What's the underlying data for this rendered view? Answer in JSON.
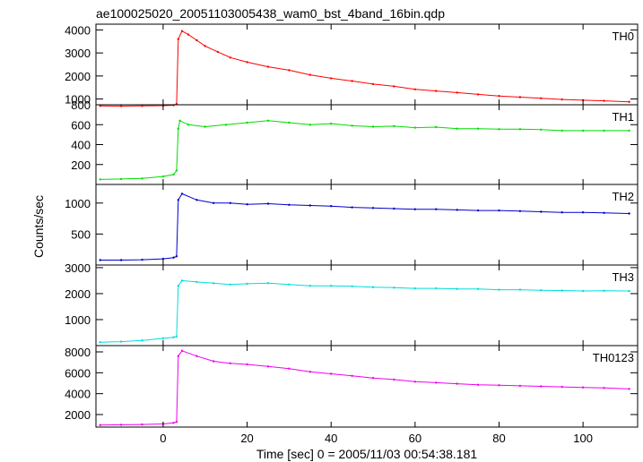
{
  "title": "ae100025020_20051103005438_wam0_bst_4band_16bin.qdp",
  "chart_data": {
    "type": "line",
    "title": "ae100025020_20051103005438_wam0_bst_4band_16bin.qdp",
    "xlabel": "Time [sec] 0 = 2005/11/03 00:54:38.181",
    "ylabel": "Counts/sec",
    "xlim": [
      -16,
      113
    ],
    "xticks": [
      0,
      20,
      40,
      60,
      80,
      100
    ],
    "grid": false,
    "legend": "none",
    "panels": [
      {
        "name": "TH0",
        "color": "#ff0000",
        "ylim": [
          750,
          4250
        ],
        "yticks": [
          1000,
          2000,
          3000,
          4000
        ],
        "points": [
          [
            -15,
            700
          ],
          [
            -10,
            690
          ],
          [
            -5,
            700
          ],
          [
            0,
            710
          ],
          [
            2.5,
            730
          ],
          [
            3.2,
            780
          ],
          [
            3.6,
            3600
          ],
          [
            4.5,
            3950
          ],
          [
            6,
            3800
          ],
          [
            8,
            3550
          ],
          [
            10,
            3300
          ],
          [
            13,
            3050
          ],
          [
            16,
            2800
          ],
          [
            20,
            2600
          ],
          [
            25,
            2400
          ],
          [
            30,
            2250
          ],
          [
            35,
            2050
          ],
          [
            40,
            1900
          ],
          [
            45,
            1780
          ],
          [
            50,
            1650
          ],
          [
            55,
            1550
          ],
          [
            60,
            1420
          ],
          [
            65,
            1350
          ],
          [
            70,
            1280
          ],
          [
            75,
            1200
          ],
          [
            80,
            1130
          ],
          [
            85,
            1080
          ],
          [
            90,
            1030
          ],
          [
            95,
            980
          ],
          [
            100,
            950
          ],
          [
            105,
            920
          ],
          [
            111,
            880
          ]
        ]
      },
      {
        "name": "TH1",
        "color": "#00dd00",
        "ylim": [
          0,
          800
        ],
        "yticks": [
          200,
          400,
          600,
          800
        ],
        "points": [
          [
            -15,
            50
          ],
          [
            -10,
            55
          ],
          [
            -5,
            60
          ],
          [
            0,
            80
          ],
          [
            2.5,
            100
          ],
          [
            3.2,
            140
          ],
          [
            3.6,
            560
          ],
          [
            4,
            640
          ],
          [
            6,
            600
          ],
          [
            10,
            580
          ],
          [
            15,
            600
          ],
          [
            20,
            620
          ],
          [
            25,
            640
          ],
          [
            30,
            620
          ],
          [
            35,
            600
          ],
          [
            40,
            610
          ],
          [
            45,
            590
          ],
          [
            50,
            580
          ],
          [
            55,
            585
          ],
          [
            60,
            570
          ],
          [
            65,
            575
          ],
          [
            70,
            560
          ],
          [
            75,
            560
          ],
          [
            80,
            555
          ],
          [
            85,
            555
          ],
          [
            90,
            550
          ],
          [
            95,
            540
          ],
          [
            100,
            540
          ],
          [
            105,
            540
          ],
          [
            111,
            540
          ]
        ]
      },
      {
        "name": "TH2",
        "color": "#0000cc",
        "ylim": [
          0,
          1300
        ],
        "yticks": [
          500,
          1000
        ],
        "points": [
          [
            -15,
            80
          ],
          [
            -10,
            80
          ],
          [
            -5,
            85
          ],
          [
            0,
            100
          ],
          [
            2.5,
            120
          ],
          [
            3.2,
            140
          ],
          [
            3.6,
            1050
          ],
          [
            4.5,
            1150
          ],
          [
            8,
            1050
          ],
          [
            12,
            1000
          ],
          [
            16,
            1000
          ],
          [
            20,
            980
          ],
          [
            25,
            990
          ],
          [
            30,
            970
          ],
          [
            35,
            960
          ],
          [
            40,
            950
          ],
          [
            45,
            930
          ],
          [
            50,
            920
          ],
          [
            55,
            910
          ],
          [
            60,
            900
          ],
          [
            65,
            900
          ],
          [
            70,
            890
          ],
          [
            75,
            880
          ],
          [
            80,
            880
          ],
          [
            85,
            870
          ],
          [
            90,
            860
          ],
          [
            95,
            850
          ],
          [
            100,
            850
          ],
          [
            105,
            840
          ],
          [
            111,
            830
          ]
        ]
      },
      {
        "name": "TH3",
        "color": "#00dddd",
        "ylim": [
          0,
          3100
        ],
        "yticks": [
          1000,
          2000,
          3000
        ],
        "points": [
          [
            -15,
            130
          ],
          [
            -10,
            150
          ],
          [
            -5,
            200
          ],
          [
            0,
            280
          ],
          [
            2.5,
            320
          ],
          [
            3.2,
            350
          ],
          [
            3.6,
            2300
          ],
          [
            4.5,
            2500
          ],
          [
            8,
            2450
          ],
          [
            12,
            2400
          ],
          [
            16,
            2350
          ],
          [
            20,
            2380
          ],
          [
            25,
            2400
          ],
          [
            30,
            2350
          ],
          [
            35,
            2300
          ],
          [
            40,
            2300
          ],
          [
            45,
            2280
          ],
          [
            50,
            2250
          ],
          [
            55,
            2230
          ],
          [
            60,
            2200
          ],
          [
            65,
            2200
          ],
          [
            70,
            2180
          ],
          [
            75,
            2180
          ],
          [
            80,
            2150
          ],
          [
            85,
            2150
          ],
          [
            90,
            2130
          ],
          [
            95,
            2120
          ],
          [
            100,
            2100
          ],
          [
            105,
            2110
          ],
          [
            111,
            2100
          ]
        ]
      },
      {
        "name": "TH0123",
        "color": "#ee00ee",
        "ylim": [
          800,
          8600
        ],
        "yticks": [
          2000,
          4000,
          6000,
          8000
        ],
        "points": [
          [
            -15,
            1000
          ],
          [
            -10,
            1020
          ],
          [
            -5,
            1050
          ],
          [
            0,
            1100
          ],
          [
            2.5,
            1200
          ],
          [
            3.2,
            1300
          ],
          [
            3.6,
            7600
          ],
          [
            4.5,
            8100
          ],
          [
            8,
            7600
          ],
          [
            12,
            7100
          ],
          [
            16,
            6900
          ],
          [
            20,
            6800
          ],
          [
            25,
            6600
          ],
          [
            30,
            6400
          ],
          [
            35,
            6100
          ],
          [
            40,
            5900
          ],
          [
            45,
            5700
          ],
          [
            50,
            5500
          ],
          [
            55,
            5350
          ],
          [
            60,
            5150
          ],
          [
            65,
            5050
          ],
          [
            70,
            4950
          ],
          [
            75,
            4850
          ],
          [
            80,
            4800
          ],
          [
            85,
            4750
          ],
          [
            90,
            4700
          ],
          [
            95,
            4650
          ],
          [
            100,
            4600
          ],
          [
            105,
            4550
          ],
          [
            111,
            4450
          ]
        ]
      }
    ]
  }
}
